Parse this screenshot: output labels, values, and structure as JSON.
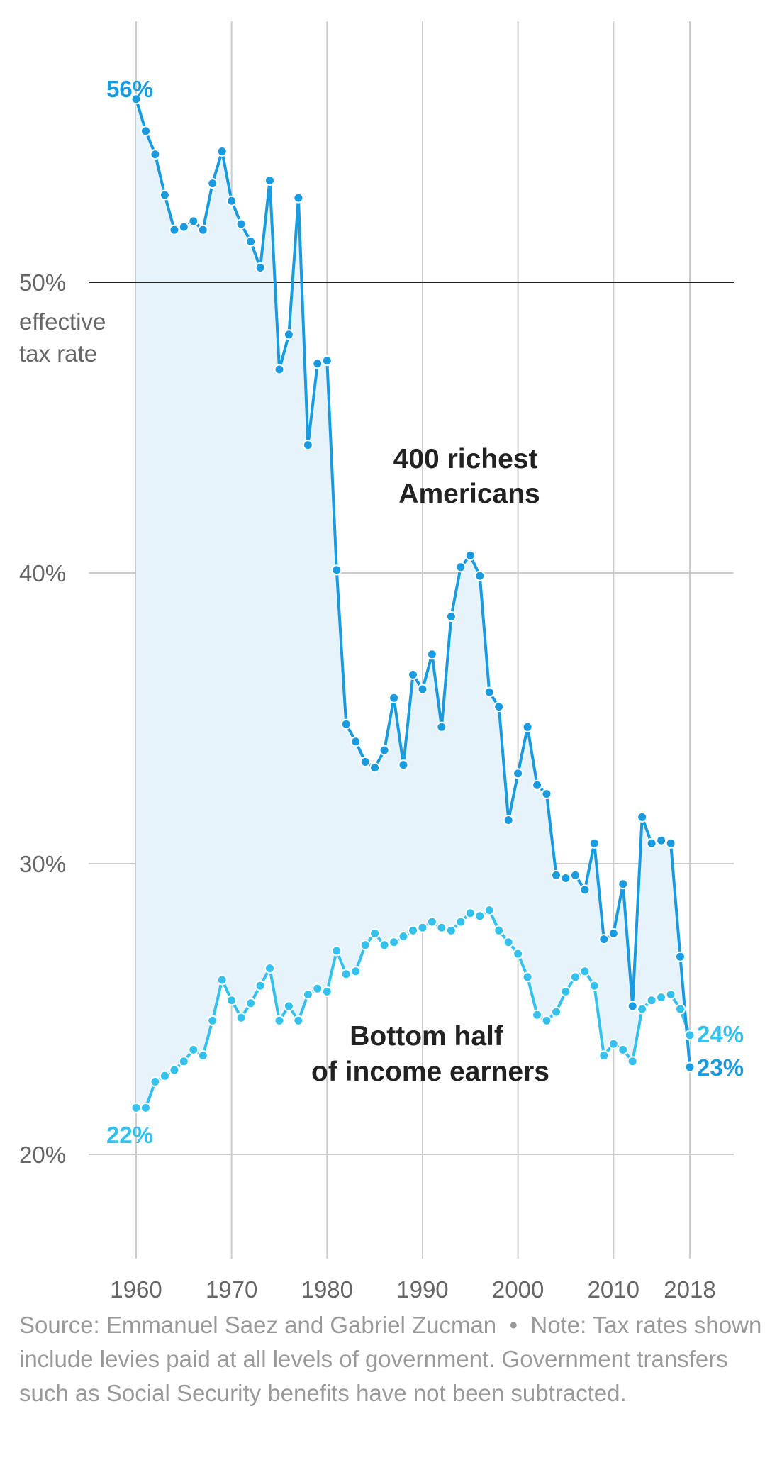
{
  "chart_data": {
    "type": "line",
    "title": "",
    "ylabel_lines": [
      "effective",
      "tax rate"
    ],
    "xlim": [
      1960,
      2018
    ],
    "ylim": [
      20,
      56
    ],
    "y_ticks": [
      {
        "value": 50,
        "label": "50%"
      },
      {
        "value": 40,
        "label": "40%"
      },
      {
        "value": 30,
        "label": "30%"
      },
      {
        "value": 20,
        "label": "20%"
      }
    ],
    "x_ticks": [
      {
        "value": 1960,
        "label": "1960"
      },
      {
        "value": 1970,
        "label": "1970"
      },
      {
        "value": 1980,
        "label": "1980"
      },
      {
        "value": 1990,
        "label": "1990"
      },
      {
        "value": 2000,
        "label": "2000"
      },
      {
        "value": 2010,
        "label": "2010"
      },
      {
        "value": 2018,
        "label": "2018"
      }
    ],
    "x": [
      1960,
      1961,
      1962,
      1963,
      1964,
      1965,
      1966,
      1967,
      1968,
      1969,
      1970,
      1971,
      1972,
      1973,
      1974,
      1975,
      1976,
      1977,
      1978,
      1979,
      1980,
      1981,
      1982,
      1983,
      1984,
      1985,
      1986,
      1987,
      1988,
      1989,
      1990,
      1991,
      1992,
      1993,
      1994,
      1995,
      1996,
      1997,
      1998,
      1999,
      2000,
      2001,
      2002,
      2003,
      2004,
      2005,
      2006,
      2007,
      2008,
      2009,
      2010,
      2011,
      2012,
      2013,
      2014,
      2015,
      2016,
      2017,
      2018
    ],
    "series": [
      {
        "name": "400 richest Americans",
        "label_lines": [
          "400 richest",
          "Americans"
        ],
        "color": "#1a9be0",
        "start_label": "56%",
        "end_label": "23%",
        "values": [
          56.3,
          55.2,
          54.4,
          53.0,
          51.8,
          51.9,
          52.1,
          51.8,
          53.4,
          54.5,
          52.8,
          52.0,
          51.4,
          50.5,
          53.5,
          47.0,
          48.2,
          52.9,
          44.4,
          47.2,
          47.3,
          40.1,
          34.8,
          34.2,
          33.5,
          33.3,
          33.9,
          35.7,
          33.4,
          36.5,
          36.0,
          37.2,
          34.7,
          38.5,
          40.2,
          40.6,
          39.9,
          35.9,
          35.4,
          31.5,
          33.1,
          34.7,
          32.7,
          32.4,
          29.6,
          29.5,
          29.6,
          29.1,
          30.7,
          27.4,
          27.6,
          29.3,
          25.1,
          31.6,
          30.7,
          30.8,
          30.7,
          26.8,
          23.0
        ]
      },
      {
        "name": "Bottom half of income earners",
        "label_lines": [
          "Bottom half",
          "of income earners"
        ],
        "color": "#35c1ee",
        "start_label": "22%",
        "end_label": "24%",
        "values": [
          21.6,
          21.6,
          22.5,
          22.7,
          22.9,
          23.2,
          23.6,
          23.4,
          24.6,
          26.0,
          25.3,
          24.7,
          25.2,
          25.8,
          26.4,
          24.6,
          25.1,
          24.6,
          25.5,
          25.7,
          25.6,
          27.0,
          26.2,
          26.3,
          27.2,
          27.6,
          27.2,
          27.3,
          27.5,
          27.7,
          27.8,
          28.0,
          27.8,
          27.7,
          28.0,
          28.3,
          28.2,
          28.4,
          27.7,
          27.3,
          26.9,
          26.1,
          24.8,
          24.6,
          24.9,
          25.6,
          26.1,
          26.3,
          25.8,
          23.4,
          23.8,
          23.6,
          23.2,
          25.0,
          25.3,
          25.4,
          25.5,
          25.0,
          24.1
        ]
      }
    ],
    "reference_line": {
      "value": 50
    },
    "grid": true,
    "legend": "none"
  },
  "footnote": {
    "source": "Source: Emmanuel Saez and Gabriel Zucman",
    "separator": "•",
    "note": "Note: Tax rates shown include levies paid at all levels of government. Government transfers such as Social Security benefits have not been subtracted."
  }
}
